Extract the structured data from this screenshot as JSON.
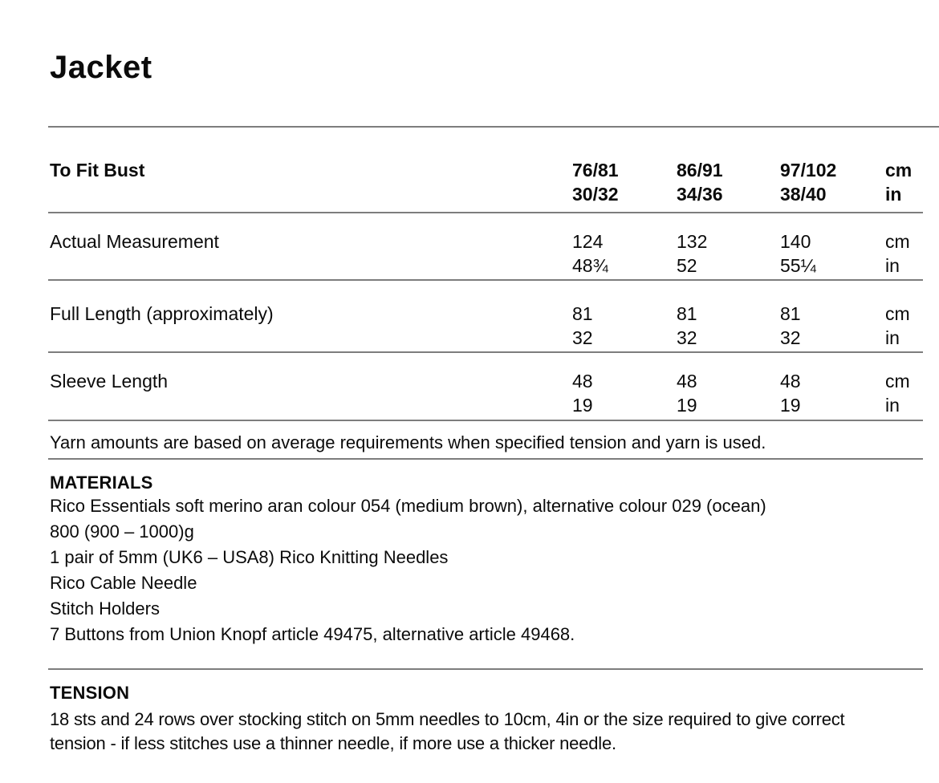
{
  "page": {
    "title": "Jacket"
  },
  "size_table": {
    "header": {
      "label": "To Fit Bust",
      "sizes": [
        {
          "cm": "76/81",
          "in": "30/32"
        },
        {
          "cm": "86/91",
          "in": "34/36"
        },
        {
          "cm": "97/102",
          "in": "38/40"
        }
      ],
      "unit_cm": "cm",
      "unit_in": "in"
    },
    "rows": [
      {
        "label": "Actual Measurement",
        "values": [
          {
            "cm": "124",
            "in": "48¾"
          },
          {
            "cm": "132",
            "in": "52"
          },
          {
            "cm": "140",
            "in": "55¼"
          }
        ],
        "unit_cm": "cm",
        "unit_in": "in"
      },
      {
        "label": "Full Length (approximately)",
        "values": [
          {
            "cm": "81",
            "in": "32"
          },
          {
            "cm": "81",
            "in": "32"
          },
          {
            "cm": "81",
            "in": "32"
          }
        ],
        "unit_cm": "cm",
        "unit_in": "in"
      },
      {
        "label": "Sleeve Length",
        "values": [
          {
            "cm": "48",
            "in": "19"
          },
          {
            "cm": "48",
            "in": "19"
          },
          {
            "cm": "48",
            "in": "19"
          }
        ],
        "unit_cm": "cm",
        "unit_in": "in"
      }
    ]
  },
  "note": "Yarn amounts are based on average requirements when specified tension and yarn is used.",
  "materials": {
    "heading": "MATERIALS",
    "items": [
      "Rico Essentials soft merino aran colour 054 (medium brown), alternative colour 029 (ocean)",
      "800 (900 – 1000)g",
      "1 pair of 5mm (UK6 – USA8) Rico Knitting Needles",
      "Rico Cable Needle",
      "Stitch Holders",
      "7 Buttons from Union Knopf article 49475, alternative article 49468."
    ]
  },
  "tension": {
    "heading": "TENSION",
    "body": "18 sts and 24 rows over stocking stitch on 5mm needles to 10cm, 4in or the size required to give correct\ntension - if less stitches use a thinner needle, if more use a thicker needle."
  },
  "colors": {
    "text": "#0b0b0b",
    "rule": "#7d7d7d",
    "background": "#ffffff"
  }
}
